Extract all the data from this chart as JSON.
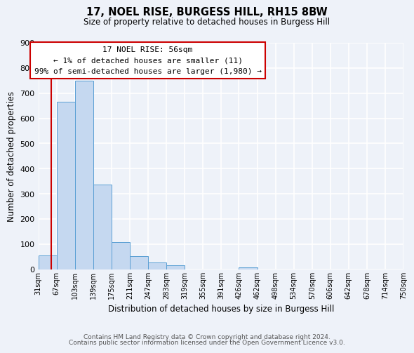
{
  "title": "17, NOEL RISE, BURGESS HILL, RH15 8BW",
  "subtitle": "Size of property relative to detached houses in Burgess Hill",
  "xlabel": "Distribution of detached houses by size in Burgess Hill",
  "ylabel": "Number of detached properties",
  "bin_edges": [
    31,
    67,
    103,
    139,
    175,
    211,
    247,
    283,
    319,
    355,
    391,
    426,
    462,
    498,
    534,
    570,
    606,
    642,
    678,
    714,
    750
  ],
  "bin_labels": [
    "31sqm",
    "67sqm",
    "103sqm",
    "139sqm",
    "175sqm",
    "211sqm",
    "247sqm",
    "283sqm",
    "319sqm",
    "355sqm",
    "391sqm",
    "426sqm",
    "462sqm",
    "498sqm",
    "534sqm",
    "570sqm",
    "606sqm",
    "642sqm",
    "678sqm",
    "714sqm",
    "750sqm"
  ],
  "bar_heights": [
    55,
    665,
    750,
    335,
    108,
    52,
    27,
    14,
    0,
    0,
    0,
    8,
    0,
    0,
    0,
    0,
    0,
    0,
    0,
    0
  ],
  "bar_color": "#c5d8f0",
  "bar_edge_color": "#5a9fd4",
  "marker_value": 56,
  "marker_color": "#cc0000",
  "ylim": [
    0,
    900
  ],
  "yticks": [
    0,
    100,
    200,
    300,
    400,
    500,
    600,
    700,
    800,
    900
  ],
  "annotation_title": "17 NOEL RISE: 56sqm",
  "annotation_line1": "← 1% of detached houses are smaller (11)",
  "annotation_line2": "99% of semi-detached houses are larger (1,980) →",
  "annotation_box_color": "#ffffff",
  "annotation_box_edge": "#cc0000",
  "footer1": "Contains HM Land Registry data © Crown copyright and database right 2024.",
  "footer2": "Contains public sector information licensed under the Open Government Licence v3.0.",
  "background_color": "#eef2f9",
  "grid_color": "#ffffff"
}
